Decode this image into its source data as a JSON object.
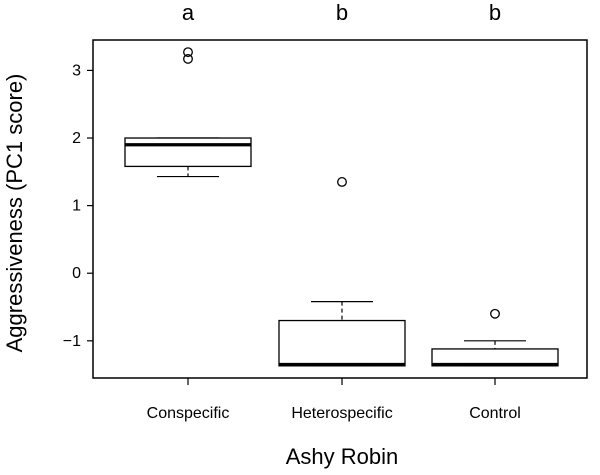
{
  "chart_data": {
    "type": "boxplot",
    "xlabel": "Ashy Robin",
    "ylabel": "Aggressiveness (PC1 score)",
    "ylim": [
      -1.55,
      3.45
    ],
    "yticks": [
      -1,
      0,
      1,
      2,
      3
    ],
    "grid": false,
    "categories": [
      "Conspecific",
      "Heterospecific",
      "Control"
    ],
    "group_letters": [
      "a",
      "b",
      "b"
    ],
    "boxes": [
      {
        "whisker_low": 1.43,
        "q1": 1.58,
        "median": 1.9,
        "q3": 2.0,
        "whisker_high": 2.0,
        "outliers": [
          3.17,
          3.27
        ]
      },
      {
        "whisker_low": -1.37,
        "q1": -1.37,
        "median": -1.35,
        "q3": -0.7,
        "whisker_high": -0.42,
        "outliers": [
          1.35
        ]
      },
      {
        "whisker_low": -1.37,
        "q1": -1.37,
        "median": -1.35,
        "q3": -1.12,
        "whisker_high": -1.0,
        "outliers": [
          -0.6
        ]
      }
    ]
  }
}
